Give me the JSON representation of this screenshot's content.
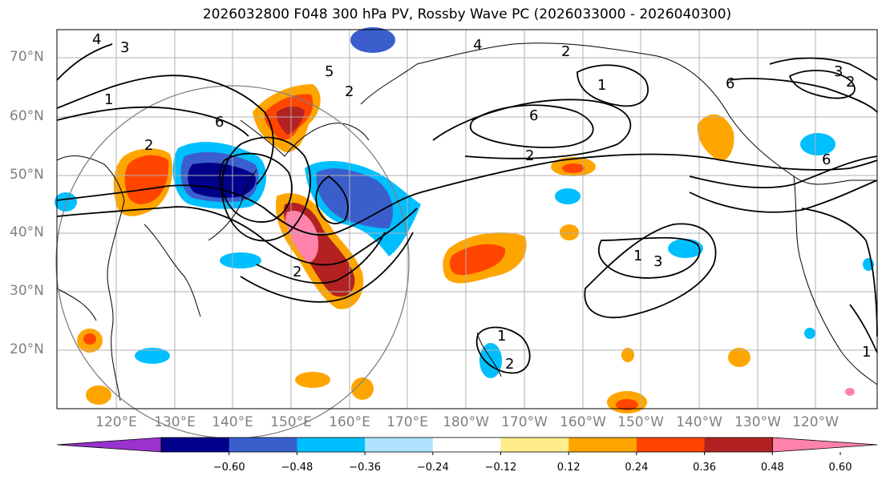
{
  "title": "2026032800 F048 300 hPa PV, Rossby Wave PC (2026033000 - 2026040300)",
  "lat_labels": [
    "70°N",
    "60°N",
    "50°N",
    "40°N",
    "30°N",
    "20°N"
  ],
  "lon_labels": [
    "120°E",
    "130°E",
    "140°E",
    "150°E",
    "160°E",
    "170°E",
    "180°W",
    "170°W",
    "160°W",
    "150°W",
    "140°W",
    "130°W",
    "120°W"
  ],
  "colorbar": {
    "colors": [
      "#9a32cd",
      "#00008b",
      "#3a5fcd",
      "#00bfff",
      "#b0e2ff",
      "#ffffff",
      "#ffec8b",
      "#ffa500",
      "#ff4500",
      "#b22222",
      "#ff82ab"
    ],
    "ticks": [
      "−0.60",
      "−0.48",
      "−0.36",
      "−0.24",
      "−0.12",
      "0.12",
      "0.24",
      "0.36",
      "0.48",
      "0.60"
    ]
  },
  "contour_labels": [
    "1",
    "2",
    "3",
    "4",
    "5",
    "6"
  ],
  "colors": {
    "land_line": "#000000",
    "grid": "#b0b0b0",
    "circle": "#808080"
  }
}
